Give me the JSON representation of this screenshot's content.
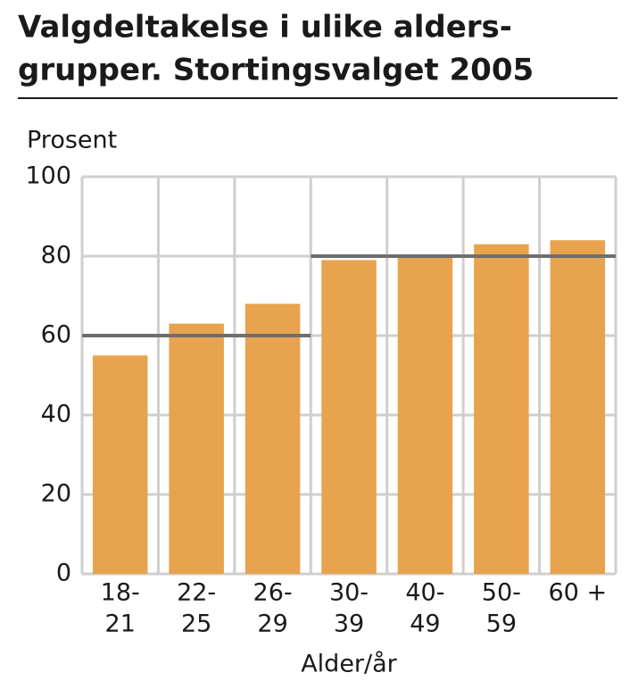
{
  "chart_data": {
    "type": "bar",
    "title_lines": [
      "Valgdeltakelse i ulike alders-",
      "grupper. Stortingsvalget 2005"
    ],
    "ylabel": "Prosent",
    "xlabel": "Alder/år",
    "categories": [
      [
        "18-",
        "21"
      ],
      [
        "22-",
        "25"
      ],
      [
        "26-",
        "29"
      ],
      [
        "30-",
        "39"
      ],
      [
        "40-",
        "49"
      ],
      [
        "50-",
        "59"
      ],
      [
        "60 +"
      ]
    ],
    "values": [
      55,
      63,
      68,
      79,
      80,
      83,
      84
    ],
    "color": "#e8a34e",
    "reference_values": [
      60,
      60,
      60,
      80,
      80,
      80,
      80
    ],
    "reference_color": "#6e6e6e",
    "ylim": [
      0,
      100
    ],
    "yticks": [
      0,
      20,
      40,
      60,
      80,
      100
    ],
    "grid": true
  }
}
